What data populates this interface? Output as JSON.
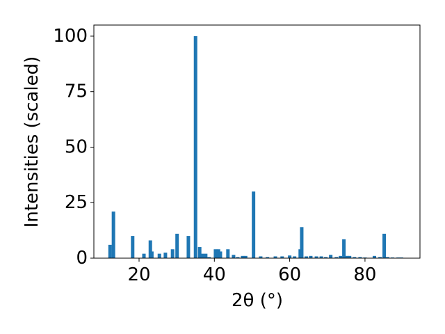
{
  "chart_data": {
    "type": "bar",
    "xlabel": "2θ (°)",
    "ylabel": "Intensities (scaled)",
    "x": [
      12.3,
      13.2,
      18.3,
      21.3,
      23.0,
      23.4,
      25.4,
      27.0,
      28.9,
      30.1,
      33.1,
      35.0,
      36.1,
      36.8,
      37.7,
      38.6,
      40.3,
      41.1,
      41.6,
      43.6,
      45.1,
      46.2,
      47.5,
      48.3,
      50.4,
      52.3,
      54.1,
      56.2,
      58.0,
      60.0,
      61.3,
      62.8,
      63.2,
      64.4,
      65.6,
      67.1,
      68.4,
      69.6,
      70.9,
      72.4,
      73.5,
      74.4,
      75.2,
      75.9,
      77.2,
      78.7,
      80.0,
      82.5,
      84.0,
      85.1,
      86.0,
      87.3,
      88.8,
      89.7
    ],
    "values": [
      6,
      21,
      10,
      2,
      8,
      3,
      2,
      2.5,
      4,
      11,
      10,
      100,
      5,
      2,
      2,
      0.5,
      4,
      4,
      3,
      4,
      1.5,
      0.5,
      1,
      1,
      30,
      0.8,
      0.5,
      0.8,
      0.8,
      1.2,
      0.8,
      4,
      14,
      0.8,
      1,
      0.8,
      0.8,
      0.5,
      1.5,
      0.5,
      1,
      8.5,
      1,
      1,
      0.5,
      0.5,
      0.3,
      1,
      0.5,
      11,
      0.5,
      0.3,
      0.3,
      0.3
    ],
    "color": "#1f77b4",
    "xlim": [
      8,
      94.6
    ],
    "ylim": [
      0,
      105
    ],
    "xticks": [
      20,
      40,
      60,
      80
    ],
    "yticks": [
      0,
      25,
      50,
      75,
      100
    ]
  }
}
